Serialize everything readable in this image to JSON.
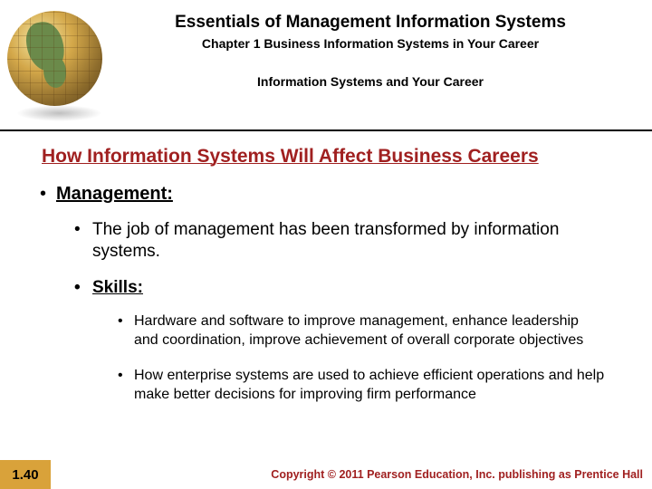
{
  "header": {
    "title_main": "Essentials of Management Information Systems",
    "chapter": "Chapter 1 Business Information Systems in Your Career",
    "section": "Information Systems and Your Career"
  },
  "content": {
    "heading": "How Information Systems Will Affect Business Careers",
    "level1": "Management:",
    "level2a": "The job of management has been transformed by information systems.",
    "level2b": "Skills:",
    "level3a": "Hardware and software to improve management, enhance leadership and coordination, improve achievement of overall corporate objectives",
    "level3b": "How enterprise systems are used to achieve efficient operations and help make better decisions for improving firm performance"
  },
  "footer": {
    "page": "1.40",
    "copyright": "Copyright © 2011 Pearson Education, Inc. publishing as Prentice Hall"
  },
  "colors": {
    "accent_red": "#a02020",
    "accent_gold": "#d9a23a",
    "text": "#000000",
    "bg": "#ffffff"
  }
}
